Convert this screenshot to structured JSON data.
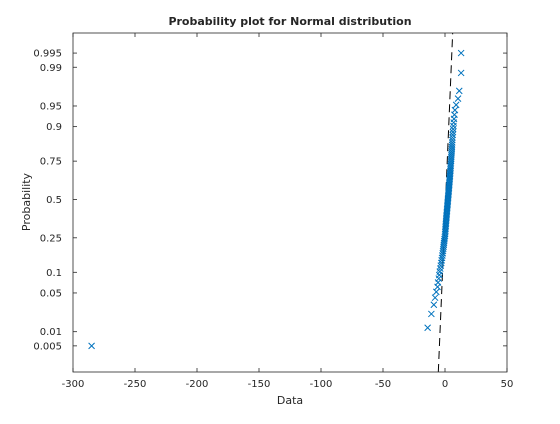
{
  "chart_data": {
    "type": "scatter",
    "title": "Probability plot for Normal distribution",
    "xlabel": "Data",
    "ylabel": "Probability",
    "xlim": [
      -300,
      50
    ],
    "y_scale": "normal-probability",
    "grid": false,
    "legend": "none",
    "x_ticks": [
      -300,
      -250,
      -200,
      -150,
      -100,
      -50,
      0,
      50
    ],
    "x_tick_labels": [
      "-300",
      "-250",
      "-200",
      "-150",
      "-100",
      "-50",
      "0",
      "50"
    ],
    "y_ticks": [
      0.005,
      0.01,
      0.05,
      0.1,
      0.25,
      0.5,
      0.75,
      0.9,
      0.95,
      0.99,
      0.995
    ],
    "y_tick_labels": [
      "0.005",
      "0.01",
      "0.05",
      "0.1",
      "0.25",
      "0.5",
      "0.75",
      "0.9",
      "0.95",
      "0.99",
      "0.995"
    ],
    "marker": "x",
    "marker_color": "#0072BD",
    "reference_line": {
      "style": "dashed",
      "color": "#000000",
      "points": [
        [
          -4.5,
          0.005
        ],
        [
          5.5,
          0.995
        ]
      ]
    },
    "series": [
      {
        "points": [
          [
            -285,
            0.005
          ],
          [
            -14,
            0.012
          ],
          [
            -11,
            0.022
          ],
          [
            -9,
            0.032
          ],
          [
            -8,
            0.042
          ],
          [
            -7,
            0.052
          ],
          [
            -6,
            0.062
          ],
          [
            -5.6,
            0.072
          ],
          [
            -5.0,
            0.082
          ],
          [
            -4.6,
            0.092
          ],
          [
            -4.2,
            0.102
          ],
          [
            -3.8,
            0.112
          ],
          [
            -3.4,
            0.122
          ],
          [
            -3.0,
            0.132
          ],
          [
            -2.7,
            0.142
          ],
          [
            -2.4,
            0.152
          ],
          [
            -2.1,
            0.162
          ],
          [
            -1.8,
            0.172
          ],
          [
            -1.6,
            0.182
          ],
          [
            -1.4,
            0.192
          ],
          [
            -1.2,
            0.202
          ],
          [
            -1.0,
            0.212
          ],
          [
            -0.8,
            0.222
          ],
          [
            -0.6,
            0.232
          ],
          [
            -0.4,
            0.242
          ],
          [
            -0.2,
            0.252
          ],
          [
            0.0,
            0.262
          ],
          [
            0.1,
            0.272
          ],
          [
            0.2,
            0.282
          ],
          [
            0.3,
            0.292
          ],
          [
            0.4,
            0.302
          ],
          [
            0.5,
            0.312
          ],
          [
            0.6,
            0.322
          ],
          [
            0.7,
            0.332
          ],
          [
            0.8,
            0.342
          ],
          [
            0.9,
            0.352
          ],
          [
            1.0,
            0.362
          ],
          [
            1.1,
            0.372
          ],
          [
            1.2,
            0.382
          ],
          [
            1.3,
            0.392
          ],
          [
            1.4,
            0.402
          ],
          [
            1.5,
            0.412
          ],
          [
            1.6,
            0.422
          ],
          [
            1.7,
            0.432
          ],
          [
            1.8,
            0.442
          ],
          [
            1.9,
            0.452
          ],
          [
            2.0,
            0.462
          ],
          [
            2.1,
            0.472
          ],
          [
            2.2,
            0.482
          ],
          [
            2.3,
            0.492
          ],
          [
            2.4,
            0.502
          ],
          [
            2.5,
            0.512
          ],
          [
            2.6,
            0.522
          ],
          [
            2.7,
            0.532
          ],
          [
            2.8,
            0.542
          ],
          [
            2.9,
            0.552
          ],
          [
            3.0,
            0.562
          ],
          [
            3.1,
            0.572
          ],
          [
            3.2,
            0.582
          ],
          [
            3.3,
            0.592
          ],
          [
            3.4,
            0.602
          ],
          [
            3.5,
            0.612
          ],
          [
            3.6,
            0.622
          ],
          [
            3.7,
            0.632
          ],
          [
            3.8,
            0.642
          ],
          [
            3.9,
            0.652
          ],
          [
            4.0,
            0.662
          ],
          [
            4.1,
            0.672
          ],
          [
            4.2,
            0.682
          ],
          [
            4.3,
            0.692
          ],
          [
            4.4,
            0.702
          ],
          [
            4.5,
            0.712
          ],
          [
            4.6,
            0.722
          ],
          [
            4.7,
            0.732
          ],
          [
            4.8,
            0.742
          ],
          [
            4.9,
            0.752
          ],
          [
            5.0,
            0.762
          ],
          [
            5.1,
            0.772
          ],
          [
            5.2,
            0.782
          ],
          [
            5.3,
            0.792
          ],
          [
            5.4,
            0.802
          ],
          [
            5.5,
            0.812
          ],
          [
            5.6,
            0.822
          ],
          [
            5.7,
            0.832
          ],
          [
            5.8,
            0.842
          ],
          [
            5.9,
            0.852
          ],
          [
            6.0,
            0.862
          ],
          [
            6.2,
            0.872
          ],
          [
            6.4,
            0.882
          ],
          [
            6.6,
            0.892
          ],
          [
            6.8,
            0.902
          ],
          [
            7.0,
            0.912
          ],
          [
            7.3,
            0.922
          ],
          [
            7.6,
            0.932
          ],
          [
            8.0,
            0.942
          ],
          [
            9.0,
            0.952
          ],
          [
            10.5,
            0.962
          ],
          [
            11.5,
            0.972
          ],
          [
            13,
            0.987
          ],
          [
            13,
            0.995
          ]
        ]
      }
    ]
  }
}
